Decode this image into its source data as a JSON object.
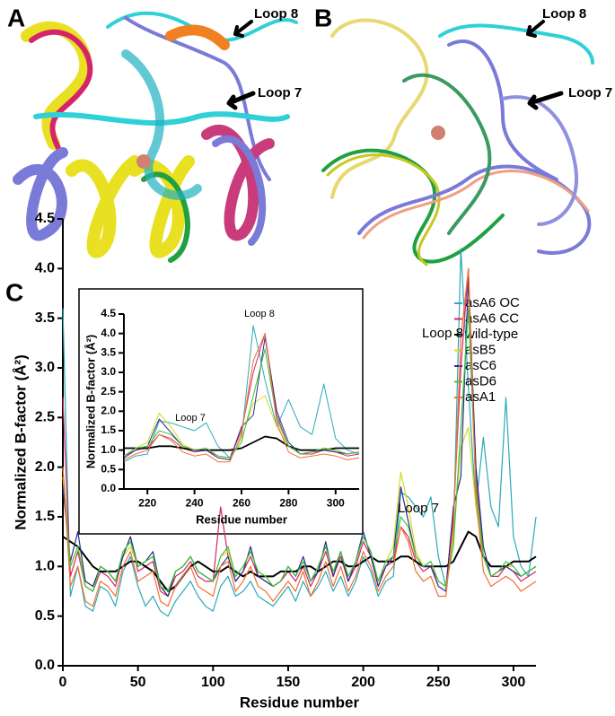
{
  "panels": [
    {
      "label": "A",
      "annotations": [
        "Loop 8",
        "Loop 7"
      ]
    },
    {
      "label": "B",
      "annotations": [
        "Loop 8",
        "Loop 7"
      ]
    },
    {
      "label": "C"
    }
  ],
  "chart_data": [
    {
      "type": "line",
      "xlabel": "Residue number",
      "ylabel": "Normalized B-factor (Å²)",
      "annotations": [
        "Loop 7",
        "Loop 8"
      ],
      "xlim": [
        0,
        315
      ],
      "ylim": [
        0,
        4.5
      ],
      "xticks": [
        0,
        50,
        100,
        150,
        200,
        250,
        300
      ],
      "yticks": [
        {
          "value": 0,
          "label": "0.0"
        },
        0.5,
        {
          "value": 1,
          "label": "1.0"
        },
        1.5,
        {
          "value": 2,
          "label": "2.0"
        },
        2.5,
        {
          "value": 3,
          "label": "3.0"
        },
        3.5,
        {
          "value": 4,
          "label": "4.0"
        },
        4.5
      ],
      "x": [
        0,
        5,
        10,
        15,
        20,
        25,
        30,
        35,
        40,
        45,
        50,
        55,
        60,
        65,
        70,
        75,
        80,
        85,
        90,
        95,
        100,
        105,
        110,
        115,
        120,
        125,
        130,
        135,
        140,
        145,
        150,
        155,
        160,
        165,
        170,
        175,
        180,
        185,
        190,
        195,
        200,
        205,
        210,
        215,
        220,
        225,
        230,
        235,
        240,
        245,
        250,
        255,
        260,
        265,
        270,
        275,
        280,
        285,
        290,
        295,
        300,
        305,
        310,
        315
      ],
      "series": [
        {
          "name": "asA6 OC",
          "color": "#2aa9b8",
          "values": [
            3.6,
            0.7,
            1.0,
            0.6,
            0.55,
            0.8,
            0.75,
            0.6,
            0.95,
            1.1,
            0.8,
            0.6,
            0.7,
            0.55,
            0.5,
            0.65,
            0.75,
            0.85,
            0.7,
            0.6,
            0.55,
            0.8,
            0.9,
            0.7,
            0.75,
            0.85,
            0.7,
            0.65,
            0.6,
            0.7,
            0.8,
            0.65,
            0.85,
            0.7,
            0.8,
            0.95,
            0.75,
            0.9,
            0.7,
            0.85,
            1.1,
            0.95,
            0.7,
            0.85,
            0.9,
            1.75,
            1.7,
            1.6,
            1.5,
            1.7,
            1.1,
            0.8,
            1.3,
            4.2,
            2.8,
            1.6,
            2.3,
            1.6,
            1.4,
            2.7,
            1.3,
            1.0,
            0.9,
            1.5
          ]
        },
        {
          "name": "asA6 CC",
          "color": "#d6246b",
          "values": [
            2.7,
            0.9,
            1.15,
            0.8,
            0.75,
            0.95,
            0.9,
            0.8,
            1.1,
            1.3,
            0.95,
            1.0,
            1.05,
            0.75,
            0.7,
            0.9,
            0.95,
            1.05,
            0.9,
            0.85,
            0.85,
            1.6,
            1.1,
            0.85,
            0.95,
            1.1,
            0.9,
            0.85,
            0.8,
            0.85,
            0.95,
            0.85,
            1.0,
            0.8,
            0.95,
            1.15,
            0.9,
            1.1,
            0.85,
            1.0,
            1.25,
            1.1,
            0.85,
            1.0,
            1.05,
            1.4,
            1.3,
            1.05,
            0.95,
            1.0,
            0.85,
            0.8,
            1.5,
            3.0,
            4.0,
            1.9,
            1.1,
            0.9,
            0.9,
            1.0,
            0.95,
            0.85,
            0.9,
            0.95
          ]
        },
        {
          "name": "wild-type",
          "color": "#000000",
          "values": [
            1.3,
            1.25,
            1.2,
            1.1,
            1.0,
            0.95,
            0.95,
            0.95,
            1.0,
            1.05,
            1.05,
            1.0,
            0.95,
            0.85,
            0.75,
            0.8,
            0.9,
            1.0,
            1.05,
            1.0,
            0.95,
            0.95,
            1.0,
            0.95,
            0.9,
            0.95,
            0.9,
            0.9,
            0.9,
            0.95,
            0.95,
            0.95,
            1.0,
            1.0,
            0.95,
            1.0,
            1.05,
            1.05,
            1.0,
            1.0,
            1.05,
            1.1,
            1.05,
            1.05,
            1.05,
            1.1,
            1.1,
            1.05,
            1.0,
            1.0,
            1.0,
            1.0,
            1.05,
            1.2,
            1.35,
            1.3,
            1.1,
            1.0,
            1.0,
            1.0,
            1.05,
            1.05,
            1.05,
            1.1
          ]
        },
        {
          "name": "asB5",
          "color": "#d8d820",
          "values": [
            1.9,
            1.0,
            1.2,
            0.85,
            0.8,
            1.0,
            0.95,
            0.85,
            1.1,
            1.2,
            1.0,
            1.05,
            1.1,
            0.8,
            0.75,
            0.95,
            1.0,
            1.1,
            0.95,
            0.9,
            0.85,
            1.1,
            1.15,
            0.9,
            1.0,
            1.15,
            0.95,
            0.9,
            0.8,
            0.85,
            1.0,
            0.9,
            1.05,
            0.85,
            1.0,
            1.2,
            0.95,
            1.15,
            0.9,
            1.05,
            1.3,
            1.15,
            0.85,
            1.05,
            1.2,
            1.95,
            1.6,
            1.15,
            1.0,
            1.05,
            0.85,
            0.8,
            1.3,
            2.2,
            2.4,
            1.6,
            1.1,
            0.9,
            0.95,
            1.0,
            1.0,
            0.9,
            0.95,
            1.0
          ]
        },
        {
          "name": "asC6",
          "color": "#2c2c8c",
          "values": [
            1.8,
            1.05,
            1.35,
            0.85,
            0.8,
            1.0,
            0.95,
            0.85,
            1.1,
            1.3,
            1.0,
            1.05,
            1.15,
            0.8,
            0.7,
            0.95,
            1.0,
            1.1,
            0.95,
            0.9,
            0.85,
            1.0,
            1.1,
            0.85,
            0.95,
            1.2,
            0.9,
            0.85,
            0.8,
            0.85,
            1.0,
            0.9,
            1.1,
            0.85,
            0.95,
            1.25,
            0.9,
            1.15,
            0.85,
            1.05,
            1.35,
            1.1,
            0.8,
            1.0,
            1.1,
            1.8,
            1.45,
            1.1,
            1.0,
            1.0,
            0.8,
            0.75,
            1.6,
            1.9,
            3.9,
            2.0,
            1.2,
            0.9,
            0.95,
            1.0,
            0.95,
            0.9,
            0.95,
            1.0
          ]
        },
        {
          "name": "asD6",
          "color": "#3cc43c",
          "values": [
            2.0,
            1.0,
            1.2,
            0.8,
            0.75,
            1.0,
            0.95,
            0.85,
            1.15,
            1.25,
            1.0,
            1.05,
            1.1,
            0.8,
            0.75,
            0.95,
            1.0,
            1.1,
            0.95,
            0.9,
            0.85,
            1.1,
            1.2,
            0.9,
            1.0,
            1.15,
            0.95,
            0.9,
            0.8,
            0.85,
            1.0,
            0.9,
            1.05,
            0.85,
            1.0,
            1.2,
            0.95,
            1.15,
            0.9,
            1.05,
            1.3,
            1.15,
            0.85,
            1.05,
            1.1,
            1.5,
            1.4,
            1.1,
            1.0,
            1.05,
            0.85,
            0.8,
            1.2,
            2.4,
            3.6,
            1.8,
            1.1,
            0.9,
            0.95,
            1.05,
            1.0,
            0.9,
            0.95,
            1.0
          ]
        },
        {
          "name": "asA1",
          "color": "#f07030",
          "values": [
            2.0,
            0.8,
            1.0,
            0.65,
            0.6,
            0.85,
            0.8,
            0.7,
            1.0,
            1.15,
            0.85,
            0.9,
            0.95,
            0.65,
            0.6,
            0.8,
            0.9,
            1.0,
            0.8,
            0.75,
            0.7,
            1.0,
            1.05,
            0.75,
            0.85,
            1.0,
            0.8,
            0.75,
            0.65,
            0.75,
            0.85,
            0.75,
            0.95,
            0.7,
            0.85,
            1.05,
            0.8,
            1.0,
            0.75,
            0.9,
            1.15,
            1.0,
            0.75,
            0.9,
            1.0,
            1.4,
            1.25,
            0.95,
            0.85,
            0.9,
            0.7,
            0.7,
            1.4,
            3.3,
            4.0,
            1.7,
            0.95,
            0.8,
            0.85,
            0.9,
            0.85,
            0.75,
            0.8,
            0.85
          ]
        }
      ]
    },
    {
      "type": "line",
      "xlabel": "Residue number",
      "ylabel": "Normalized B-factor (Å²)",
      "annotations": [
        "Loop 7",
        "Loop 8"
      ],
      "xlim": [
        210,
        310
      ],
      "ylim": [
        0,
        4.5
      ],
      "xticks": [
        220,
        240,
        260,
        280,
        300
      ],
      "yticks": [
        {
          "value": 0,
          "label": "0.0"
        },
        0.5,
        {
          "value": 1,
          "label": "1.0"
        },
        1.5,
        {
          "value": 2,
          "label": "2.0"
        },
        2.5,
        {
          "value": 3,
          "label": "3.0"
        },
        3.5,
        {
          "value": 4,
          "label": "4.0"
        },
        4.5
      ],
      "x": [
        210,
        215,
        220,
        225,
        230,
        235,
        240,
        245,
        250,
        255,
        260,
        265,
        270,
        275,
        280,
        285,
        290,
        295,
        300,
        305,
        310
      ],
      "series": [
        {
          "color": "#2aa9b8",
          "values": [
            0.7,
            0.85,
            0.9,
            1.75,
            1.7,
            1.6,
            1.5,
            1.7,
            1.1,
            0.8,
            1.3,
            4.2,
            2.8,
            1.6,
            2.3,
            1.6,
            1.4,
            2.7,
            1.3,
            1.0,
            0.9
          ]
        },
        {
          "color": "#d6246b",
          "values": [
            0.85,
            1.0,
            1.05,
            1.4,
            1.3,
            1.05,
            0.95,
            1.0,
            0.85,
            0.8,
            1.5,
            3.0,
            4.0,
            1.9,
            1.1,
            0.9,
            0.9,
            1.0,
            0.95,
            0.85,
            0.9
          ]
        },
        {
          "color": "#000000",
          "values": [
            1.05,
            1.05,
            1.05,
            1.1,
            1.1,
            1.05,
            1.0,
            1.0,
            1.0,
            1.0,
            1.05,
            1.2,
            1.35,
            1.3,
            1.1,
            1.0,
            1.0,
            1.0,
            1.05,
            1.05,
            1.05
          ]
        },
        {
          "color": "#d8d820",
          "values": [
            0.85,
            1.05,
            1.2,
            1.95,
            1.6,
            1.15,
            1.0,
            1.05,
            0.85,
            0.8,
            1.3,
            2.2,
            2.4,
            1.6,
            1.1,
            0.9,
            0.95,
            1.0,
            1.0,
            0.9,
            0.95
          ]
        },
        {
          "color": "#2c2c8c",
          "values": [
            0.8,
            1.0,
            1.1,
            1.8,
            1.45,
            1.1,
            1.0,
            1.0,
            0.8,
            0.75,
            1.6,
            1.9,
            3.9,
            2.0,
            1.2,
            0.9,
            0.95,
            1.0,
            0.95,
            0.9,
            0.95
          ]
        },
        {
          "color": "#3cc43c",
          "values": [
            0.85,
            1.05,
            1.1,
            1.5,
            1.4,
            1.1,
            1.0,
            1.05,
            0.85,
            0.8,
            1.2,
            2.4,
            3.6,
            1.8,
            1.1,
            0.9,
            0.95,
            1.05,
            1.0,
            0.9,
            0.95
          ]
        },
        {
          "color": "#f07030",
          "values": [
            0.75,
            0.9,
            1.0,
            1.4,
            1.25,
            0.95,
            0.85,
            0.9,
            0.7,
            0.7,
            1.4,
            3.3,
            4.0,
            1.7,
            0.95,
            0.8,
            0.85,
            0.9,
            0.85,
            0.75,
            0.8
          ]
        }
      ]
    }
  ]
}
